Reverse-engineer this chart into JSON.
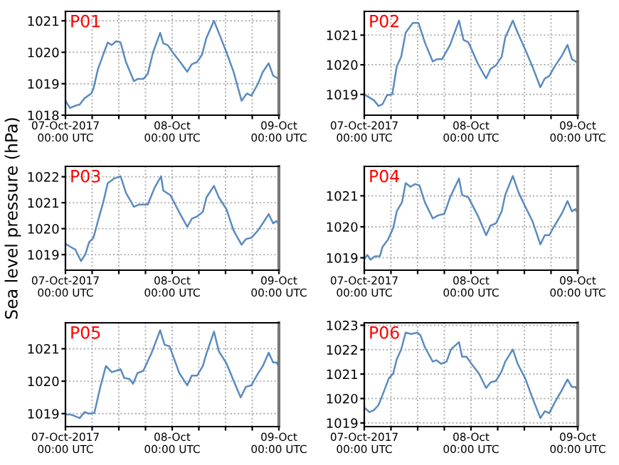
{
  "chart_data": [
    {
      "type": "line",
      "title": "P01",
      "xlim": [
        "2017-10-07T00:00",
        "2017-10-09T00:00"
      ],
      "ylim": [
        1018,
        1021.3
      ],
      "yticks": [
        1018,
        1019,
        1020,
        1021
      ],
      "xticks": [
        {
          "value": "2017-10-07T00:00",
          "label": "07-Oct-2017\n00:00 UTC"
        },
        {
          "value": "2017-10-07T06:00",
          "label": null
        },
        {
          "value": "2017-10-07T12:00",
          "label": null
        },
        {
          "value": "2017-10-07T18:00",
          "label": null
        },
        {
          "value": "2017-10-08T00:00",
          "label": "08-Oct\n00:00 UTC"
        },
        {
          "value": "2017-10-08T06:00",
          "label": null
        },
        {
          "value": "2017-10-08T12:00",
          "label": null
        },
        {
          "value": "2017-10-08T18:00",
          "label": null
        },
        {
          "value": "2017-10-09T00:00",
          "label": "09-Oct\n00:00 UTC"
        }
      ],
      "grid": true,
      "series": [
        {
          "color": "#5b8bbf",
          "x": [
            "2017-10-07T00:00",
            "2017-10-07T01:00",
            "2017-10-07T02:12",
            "2017-10-07T03:12",
            "2017-10-07T04:18",
            "2017-10-07T05:48",
            "2017-10-07T06:18",
            "2017-10-07T07:18",
            "2017-10-07T08:18",
            "2017-10-07T09:30",
            "2017-10-07T10:24",
            "2017-10-07T11:24",
            "2017-10-07T12:24",
            "2017-10-07T13:36",
            "2017-10-07T15:24",
            "2017-10-07T16:12",
            "2017-10-07T17:30",
            "2017-10-07T18:30",
            "2017-10-07T19:42",
            "2017-10-07T21:18",
            "2017-10-07T22:00",
            "2017-10-07T23:00",
            "2017-10-08T00:06",
            "2017-10-08T01:48",
            "2017-10-08T03:24",
            "2017-10-08T04:24",
            "2017-10-08T05:36",
            "2017-10-08T06:42",
            "2017-10-08T07:42",
            "2017-10-08T09:24",
            "2017-10-08T10:42",
            "2017-10-08T12:12",
            "2017-10-08T13:48",
            "2017-10-08T15:36",
            "2017-10-08T16:48",
            "2017-10-08T17:48",
            "2017-10-08T19:18",
            "2017-10-08T20:24",
            "2017-10-08T21:42",
            "2017-10-08T22:42",
            "2017-10-09T00:00"
          ],
          "values": [
            1018.46,
            1018.23,
            1018.3,
            1018.34,
            1018.54,
            1018.69,
            1018.85,
            1019.46,
            1019.85,
            1020.31,
            1020.23,
            1020.35,
            1020.31,
            1019.69,
            1019.08,
            1019.15,
            1019.15,
            1019.31,
            1020.0,
            1020.62,
            1020.28,
            1020.23,
            1020.0,
            1019.69,
            1019.38,
            1019.62,
            1019.69,
            1019.92,
            1020.46,
            1021.0,
            1020.54,
            1020.0,
            1019.38,
            1018.46,
            1018.69,
            1018.62,
            1019.0,
            1019.38,
            1019.65,
            1019.26,
            1019.15
          ]
        }
      ]
    },
    {
      "type": "line",
      "title": "P02",
      "xlim": [
        "2017-10-07T00:00",
        "2017-10-09T00:00"
      ],
      "ylim": [
        1018.3,
        1021.8
      ],
      "yticks": [
        1019,
        1020,
        1021
      ],
      "xticks": [
        {
          "value": "2017-10-07T00:00",
          "label": "07-Oct-2017\n00:00 UTC"
        },
        {
          "value": "2017-10-07T06:00",
          "label": null
        },
        {
          "value": "2017-10-07T12:00",
          "label": null
        },
        {
          "value": "2017-10-07T18:00",
          "label": null
        },
        {
          "value": "2017-10-08T00:00",
          "label": "08-Oct\n00:00 UTC"
        },
        {
          "value": "2017-10-08T06:00",
          "label": null
        },
        {
          "value": "2017-10-08T12:00",
          "label": null
        },
        {
          "value": "2017-10-08T18:00",
          "label": null
        },
        {
          "value": "2017-10-09T00:00",
          "label": "09-Oct\n00:00 UTC"
        }
      ],
      "grid": true,
      "series": [
        {
          "color": "#5b8bbf",
          "x": [
            "2017-10-07T00:00",
            "2017-10-07T01:12",
            "2017-10-07T02:12",
            "2017-10-07T03:12",
            "2017-10-07T04:06",
            "2017-10-07T05:06",
            "2017-10-07T06:18",
            "2017-10-07T07:18",
            "2017-10-07T08:18",
            "2017-10-07T09:18",
            "2017-10-07T10:54",
            "2017-10-07T12:12",
            "2017-10-07T13:36",
            "2017-10-07T15:24",
            "2017-10-07T16:24",
            "2017-10-07T17:30",
            "2017-10-07T19:18",
            "2017-10-07T21:18",
            "2017-10-07T22:18",
            "2017-10-07T23:24",
            "2017-10-08T01:36",
            "2017-10-08T03:24",
            "2017-10-08T04:24",
            "2017-10-08T05:36",
            "2017-10-08T06:54",
            "2017-10-08T07:42",
            "2017-10-08T09:24",
            "2017-10-08T10:30",
            "2017-10-08T12:12",
            "2017-10-08T13:48",
            "2017-10-08T15:36",
            "2017-10-08T16:36",
            "2017-10-08T17:36",
            "2017-10-08T18:48",
            "2017-10-08T20:24",
            "2017-10-08T21:42",
            "2017-10-08T22:42",
            "2017-10-09T00:00"
          ],
          "values": [
            1019.0,
            1018.89,
            1018.8,
            1018.61,
            1018.67,
            1018.97,
            1019.0,
            1019.94,
            1020.27,
            1021.08,
            1021.41,
            1021.41,
            1020.76,
            1020.11,
            1020.19,
            1020.19,
            1020.67,
            1021.49,
            1020.84,
            1020.76,
            1020.02,
            1019.54,
            1019.86,
            1019.98,
            1020.27,
            1020.92,
            1021.49,
            1021.08,
            1020.51,
            1019.94,
            1019.24,
            1019.54,
            1019.62,
            1019.94,
            1020.3,
            1020.67,
            1020.19,
            1020.06
          ]
        }
      ]
    },
    {
      "type": "line",
      "title": "P03",
      "ylabel": "Sea level pressure (hPa)",
      "xlim": [
        "2017-10-07T00:00",
        "2017-10-09T00:00"
      ],
      "ylim": [
        1018.4,
        1022.4
      ],
      "yticks": [
        1019,
        1020,
        1021,
        1022
      ],
      "xticks": [
        {
          "value": "2017-10-07T00:00",
          "label": "07-Oct-2017\n00:00 UTC"
        },
        {
          "value": "2017-10-07T06:00",
          "label": null
        },
        {
          "value": "2017-10-07T12:00",
          "label": null
        },
        {
          "value": "2017-10-07T18:00",
          "label": null
        },
        {
          "value": "2017-10-08T00:00",
          "label": "08-Oct\n00:00 UTC"
        },
        {
          "value": "2017-10-08T06:00",
          "label": null
        },
        {
          "value": "2017-10-08T12:00",
          "label": null
        },
        {
          "value": "2017-10-08T18:00",
          "label": null
        },
        {
          "value": "2017-10-09T00:00",
          "label": "09-Oct\n00:00 UTC"
        }
      ],
      "grid": true,
      "series": [
        {
          "color": "#5b8bbf",
          "x": [
            "2017-10-07T00:00",
            "2017-10-07T01:12",
            "2017-10-07T02:12",
            "2017-10-07T03:30",
            "2017-10-07T04:30",
            "2017-10-07T05:18",
            "2017-10-07T06:18",
            "2017-10-07T07:18",
            "2017-10-07T08:30",
            "2017-10-07T09:30",
            "2017-10-07T10:54",
            "2017-10-07T12:24",
            "2017-10-07T13:36",
            "2017-10-07T15:24",
            "2017-10-07T16:36",
            "2017-10-07T18:30",
            "2017-10-07T20:00",
            "2017-10-07T21:30",
            "2017-10-07T22:00",
            "2017-10-07T23:36",
            "2017-10-08T01:48",
            "2017-10-08T03:24",
            "2017-10-08T04:24",
            "2017-10-08T05:36",
            "2017-10-08T06:54",
            "2017-10-08T07:42",
            "2017-10-08T09:24",
            "2017-10-08T10:30",
            "2017-10-08T12:12",
            "2017-10-08T13:48",
            "2017-10-08T15:36",
            "2017-10-08T16:36",
            "2017-10-08T17:48",
            "2017-10-08T19:18",
            "2017-10-08T20:42",
            "2017-10-08T21:42",
            "2017-10-08T22:42",
            "2017-10-08T23:24",
            "2017-10-09T00:00"
          ],
          "values": [
            1019.42,
            1019.29,
            1019.2,
            1018.75,
            1019.02,
            1019.47,
            1019.65,
            1020.29,
            1021.02,
            1021.75,
            1021.93,
            1022.02,
            1021.38,
            1020.84,
            1020.93,
            1020.93,
            1021.56,
            1022.02,
            1021.47,
            1021.29,
            1020.56,
            1020.07,
            1020.38,
            1020.47,
            1020.65,
            1021.2,
            1021.65,
            1021.2,
            1020.75,
            1019.93,
            1019.38,
            1019.6,
            1019.65,
            1019.93,
            1020.29,
            1020.56,
            1020.2,
            1020.29,
            1020.2
          ]
        }
      ]
    },
    {
      "type": "line",
      "title": "P04",
      "xlim": [
        "2017-10-07T00:00",
        "2017-10-09T00:00"
      ],
      "ylim": [
        1018.6,
        1021.95
      ],
      "yticks": [
        1019,
        1020,
        1021
      ],
      "xticks": [
        {
          "value": "2017-10-07T00:00",
          "label": "07-Oct-2017\n00:00 UTC"
        },
        {
          "value": "2017-10-07T06:00",
          "label": null
        },
        {
          "value": "2017-10-07T12:00",
          "label": null
        },
        {
          "value": "2017-10-07T18:00",
          "label": null
        },
        {
          "value": "2017-10-08T00:00",
          "label": "08-Oct\n00:00 UTC"
        },
        {
          "value": "2017-10-08T06:00",
          "label": null
        },
        {
          "value": "2017-10-08T12:00",
          "label": null
        },
        {
          "value": "2017-10-08T18:00",
          "label": null
        },
        {
          "value": "2017-10-09T00:00",
          "label": "09-Oct\n00:00 UTC"
        }
      ],
      "grid": true,
      "series": [
        {
          "color": "#5b8bbf",
          "x": [
            "2017-10-07T00:00",
            "2017-10-07T00:42",
            "2017-10-07T01:24",
            "2017-10-07T02:24",
            "2017-10-07T03:30",
            "2017-10-07T04:06",
            "2017-10-07T05:18",
            "2017-10-07T06:30",
            "2017-10-07T07:18",
            "2017-10-07T08:30",
            "2017-10-07T09:18",
            "2017-10-07T10:24",
            "2017-10-07T11:24",
            "2017-10-07T12:24",
            "2017-10-07T13:36",
            "2017-10-07T15:24",
            "2017-10-07T16:36",
            "2017-10-07T18:00",
            "2017-10-07T19:18",
            "2017-10-07T21:18",
            "2017-10-07T22:00",
            "2017-10-07T23:24",
            "2017-10-08T01:36",
            "2017-10-08T03:24",
            "2017-10-08T04:24",
            "2017-10-08T05:36",
            "2017-10-08T06:54",
            "2017-10-08T07:42",
            "2017-10-08T09:24",
            "2017-10-08T10:42",
            "2017-10-08T12:12",
            "2017-10-08T13:48",
            "2017-10-08T15:36",
            "2017-10-08T16:36",
            "2017-10-08T17:36",
            "2017-10-08T18:48",
            "2017-10-08T20:24",
            "2017-10-08T21:42",
            "2017-10-08T22:42",
            "2017-10-08T23:30",
            "2017-10-09T00:00"
          ],
          "values": [
            1018.97,
            1019.09,
            1018.94,
            1019.05,
            1019.05,
            1019.35,
            1019.58,
            1019.96,
            1020.5,
            1020.8,
            1021.41,
            1021.29,
            1021.38,
            1021.34,
            1020.8,
            1020.27,
            1020.37,
            1020.42,
            1020.95,
            1021.56,
            1021.03,
            1020.95,
            1020.34,
            1019.73,
            1020.04,
            1020.11,
            1020.5,
            1021.03,
            1021.64,
            1021.11,
            1020.65,
            1020.19,
            1019.43,
            1019.73,
            1019.73,
            1020.04,
            1020.42,
            1020.83,
            1020.5,
            1020.57,
            1020.42
          ]
        }
      ]
    },
    {
      "type": "line",
      "title": "P05",
      "xlim": [
        "2017-10-07T00:00",
        "2017-10-09T00:00"
      ],
      "ylim": [
        1018.6,
        1021.8
      ],
      "yticks": [
        1019,
        1020,
        1021
      ],
      "xticks": [
        {
          "value": "2017-10-07T00:00",
          "label": "07-Oct-2017\n00:00 UTC"
        },
        {
          "value": "2017-10-07T06:00",
          "label": null
        },
        {
          "value": "2017-10-07T12:00",
          "label": null
        },
        {
          "value": "2017-10-07T18:00",
          "label": null
        },
        {
          "value": "2017-10-08T00:00",
          "label": "08-Oct\n00:00 UTC"
        },
        {
          "value": "2017-10-08T06:00",
          "label": null
        },
        {
          "value": "2017-10-08T12:00",
          "label": null
        },
        {
          "value": "2017-10-08T18:00",
          "label": null
        },
        {
          "value": "2017-10-09T00:00",
          "label": "09-Oct\n00:00 UTC"
        }
      ],
      "grid": true,
      "series": [
        {
          "color": "#5b8bbf",
          "x": [
            "2017-10-07T00:00",
            "2017-10-07T01:12",
            "2017-10-07T02:12",
            "2017-10-07T03:12",
            "2017-10-07T04:18",
            "2017-10-07T05:18",
            "2017-10-07T06:30",
            "2017-10-07T07:48",
            "2017-10-07T09:06",
            "2017-10-07T10:24",
            "2017-10-07T11:24",
            "2017-10-07T12:24",
            "2017-10-07T13:12",
            "2017-10-07T14:24",
            "2017-10-07T15:12",
            "2017-10-07T16:12",
            "2017-10-07T17:30",
            "2017-10-07T19:18",
            "2017-10-07T21:18",
            "2017-10-07T22:18",
            "2017-10-07T23:24",
            "2017-10-08T01:36",
            "2017-10-08T03:24",
            "2017-10-08T04:24",
            "2017-10-08T05:36",
            "2017-10-08T06:54",
            "2017-10-08T07:42",
            "2017-10-08T09:24",
            "2017-10-08T10:30",
            "2017-10-08T12:12",
            "2017-10-08T13:48",
            "2017-10-08T15:24",
            "2017-10-08T16:36",
            "2017-10-08T17:48",
            "2017-10-08T19:00",
            "2017-10-08T20:24",
            "2017-10-08T21:42",
            "2017-10-08T22:42",
            "2017-10-08T23:30",
            "2017-10-09T00:00"
          ],
          "values": [
            1018.97,
            1018.97,
            1018.92,
            1018.86,
            1019.05,
            1019.0,
            1019.02,
            1019.8,
            1020.47,
            1020.28,
            1020.32,
            1020.37,
            1020.1,
            1020.07,
            1019.92,
            1020.25,
            1020.32,
            1020.85,
            1021.57,
            1021.12,
            1021.08,
            1020.25,
            1019.87,
            1020.17,
            1020.17,
            1020.47,
            1020.85,
            1021.53,
            1020.92,
            1020.55,
            1020.02,
            1019.5,
            1019.83,
            1019.87,
            1020.17,
            1020.47,
            1020.88,
            1020.58,
            1020.58,
            1020.43
          ]
        }
      ]
    },
    {
      "type": "line",
      "title": "P06",
      "xlim": [
        "2017-10-07T00:00",
        "2017-10-09T00:00"
      ],
      "ylim": [
        1018.85,
        1023.1
      ],
      "yticks": [
        1019,
        1020,
        1021,
        1022,
        1023
      ],
      "xticks": [
        {
          "value": "2017-10-07T00:00",
          "label": "07-Oct-2017\n00:00 UTC"
        },
        {
          "value": "2017-10-07T06:00",
          "label": null
        },
        {
          "value": "2017-10-07T12:00",
          "label": null
        },
        {
          "value": "2017-10-07T18:00",
          "label": null
        },
        {
          "value": "2017-10-08T00:00",
          "label": "08-Oct\n00:00 UTC"
        },
        {
          "value": "2017-10-08T06:00",
          "label": null
        },
        {
          "value": "2017-10-08T12:00",
          "label": null
        },
        {
          "value": "2017-10-08T18:00",
          "label": null
        },
        {
          "value": "2017-10-09T00:00",
          "label": "09-Oct\n00:00 UTC"
        }
      ],
      "grid": true,
      "series": [
        {
          "color": "#5b8bbf",
          "x": [
            "2017-10-07T00:00",
            "2017-10-07T01:12",
            "2017-10-07T02:12",
            "2017-10-07T03:12",
            "2017-10-07T04:30",
            "2017-10-07T05:30",
            "2017-10-07T06:30",
            "2017-10-07T07:18",
            "2017-10-07T08:18",
            "2017-10-07T09:18",
            "2017-10-07T10:36",
            "2017-10-07T11:54",
            "2017-10-07T12:36",
            "2017-10-07T13:36",
            "2017-10-07T15:24",
            "2017-10-07T16:12",
            "2017-10-07T17:18",
            "2017-10-07T18:30",
            "2017-10-07T19:30",
            "2017-10-07T21:18",
            "2017-10-07T22:00",
            "2017-10-07T23:00",
            "2017-10-08T00:06",
            "2017-10-08T01:48",
            "2017-10-08T03:24",
            "2017-10-08T04:24",
            "2017-10-08T05:36",
            "2017-10-08T06:54",
            "2017-10-08T07:42",
            "2017-10-08T09:24",
            "2017-10-08T10:30",
            "2017-10-08T12:12",
            "2017-10-08T13:48",
            "2017-10-08T15:36",
            "2017-10-08T16:36",
            "2017-10-08T17:36",
            "2017-10-08T18:48",
            "2017-10-08T20:24",
            "2017-10-08T21:42",
            "2017-10-08T22:42",
            "2017-10-08T23:30",
            "2017-10-09T00:00"
          ],
          "values": [
            1019.63,
            1019.44,
            1019.53,
            1019.73,
            1020.33,
            1020.82,
            1021.02,
            1021.61,
            1022.01,
            1022.7,
            1022.64,
            1022.7,
            1022.6,
            1022.11,
            1021.51,
            1021.57,
            1021.42,
            1021.51,
            1022.01,
            1022.31,
            1021.71,
            1021.71,
            1021.42,
            1021.02,
            1020.43,
            1020.66,
            1020.72,
            1021.12,
            1021.51,
            1022.01,
            1021.42,
            1020.82,
            1020.03,
            1019.2,
            1019.48,
            1019.4,
            1019.83,
            1020.33,
            1020.78,
            1020.47,
            1020.47,
            1020.33
          ]
        }
      ]
    }
  ]
}
